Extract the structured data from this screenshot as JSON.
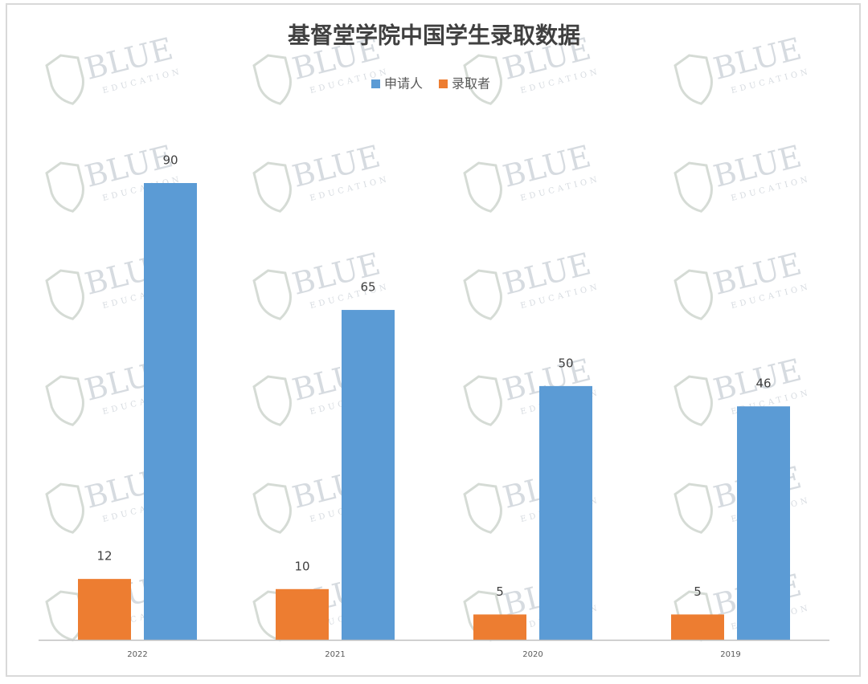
{
  "chart_data": {
    "type": "bar",
    "title": "基督堂学院中国学生录取数据",
    "categories": [
      "2022",
      "2021",
      "2020",
      "2019"
    ],
    "series": [
      {
        "name": "录取者",
        "color": "#ed7d31",
        "values": [
          12,
          10,
          5,
          5
        ]
      },
      {
        "name": "申请人",
        "color": "#5b9bd5",
        "values": [
          90,
          65,
          50,
          46
        ]
      }
    ],
    "legend_order": [
      1,
      0
    ],
    "watermark": {
      "text": "BLUE",
      "subtext": "EDUCATION"
    }
  }
}
